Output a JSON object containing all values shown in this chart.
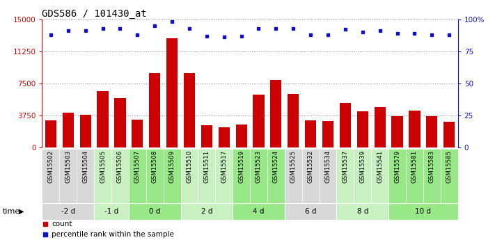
{
  "title": "GDS586 / 101430_at",
  "samples": [
    "GSM15502",
    "GSM15503",
    "GSM15504",
    "GSM15505",
    "GSM15506",
    "GSM15507",
    "GSM15508",
    "GSM15509",
    "GSM15510",
    "GSM15511",
    "GSM15517",
    "GSM15519",
    "GSM15523",
    "GSM15524",
    "GSM15525",
    "GSM15532",
    "GSM15534",
    "GSM15537",
    "GSM15539",
    "GSM15541",
    "GSM15579",
    "GSM15581",
    "GSM15583",
    "GSM15585"
  ],
  "bar_values": [
    3200,
    4100,
    3800,
    6600,
    5800,
    3300,
    8700,
    12800,
    8700,
    2600,
    2400,
    2700,
    6200,
    7900,
    6300,
    3200,
    3100,
    5200,
    4200,
    4700,
    3700,
    4300,
    3700,
    3000
  ],
  "pct_values": [
    88,
    91,
    91,
    93,
    93,
    88,
    95,
    98,
    93,
    87,
    86,
    87,
    93,
    93,
    93,
    88,
    88,
    92,
    90,
    91,
    89,
    89,
    88,
    88
  ],
  "groups": [
    {
      "label": "-2 d",
      "count": 3,
      "color": "#d8d8d8"
    },
    {
      "label": "-1 d",
      "count": 2,
      "color": "#c8f0c0"
    },
    {
      "label": "0 d",
      "count": 3,
      "color": "#98e888"
    },
    {
      "label": "2 d",
      "count": 3,
      "color": "#c8f0c0"
    },
    {
      "label": "4 d",
      "count": 3,
      "color": "#98e888"
    },
    {
      "label": "6 d",
      "count": 3,
      "color": "#d8d8d8"
    },
    {
      "label": "8 d",
      "count": 3,
      "color": "#c8f0c0"
    },
    {
      "label": "10 d",
      "count": 4,
      "color": "#98e888"
    }
  ],
  "sample_bg_colors": [
    "#d8d8d8",
    "#d8d8d8",
    "#d8d8d8",
    "#c8f0c0",
    "#c8f0c0",
    "#98e888",
    "#98e888",
    "#98e888",
    "#c8f0c0",
    "#c8f0c0",
    "#c8f0c0",
    "#98e888",
    "#98e888",
    "#98e888",
    "#d8d8d8",
    "#d8d8d8",
    "#d8d8d8",
    "#c8f0c0",
    "#c8f0c0",
    "#c8f0c0",
    "#98e888",
    "#98e888",
    "#98e888",
    "#98e888"
  ],
  "ylim_left": [
    0,
    15000
  ],
  "ylim_right": [
    0,
    100
  ],
  "yticks_left": [
    0,
    3750,
    7500,
    11250,
    15000
  ],
  "yticks_right": [
    0,
    25,
    50,
    75,
    100
  ],
  "bar_color": "#cc0000",
  "dot_color": "#1111cc",
  "grid_color": "#888888",
  "bg_color": "#ffffff",
  "title_fontsize": 10,
  "legend_items": [
    {
      "label": "count",
      "color": "#cc0000"
    },
    {
      "label": "percentile rank within the sample",
      "color": "#1111cc"
    }
  ]
}
